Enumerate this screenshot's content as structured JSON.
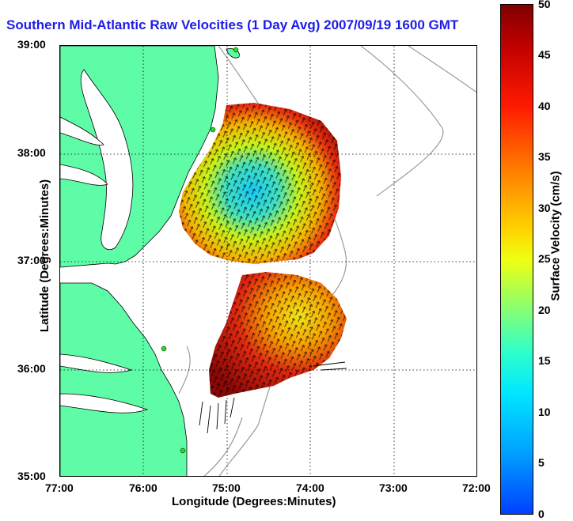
{
  "title": "Southern Mid-Atlantic Raw Velocities (1 Day Avg) 2007/09/19 1600 GMT",
  "xaxis": {
    "label": "Longitude (Degrees:Minutes)",
    "ticks": [
      "77:00",
      "76:00",
      "75:00",
      "74:00",
      "73:00",
      "72:00"
    ]
  },
  "yaxis": {
    "label": "Latitude (Degrees:Minutes)",
    "ticks": [
      "39:00",
      "38:00",
      "37:00",
      "36:00",
      "35:00"
    ]
  },
  "colorbar": {
    "label": "Surface Velocity (cm/s)",
    "ticks": [
      "50",
      "45",
      "40",
      "35",
      "30",
      "25",
      "20",
      "15",
      "10",
      "5",
      "0"
    ],
    "range": [
      0,
      50
    ],
    "colormap": "jet"
  },
  "colors": {
    "land": "#5ffca8",
    "title": "#1d1de6",
    "bathymetry": "#9b9b9b",
    "grid": "#000000"
  }
}
